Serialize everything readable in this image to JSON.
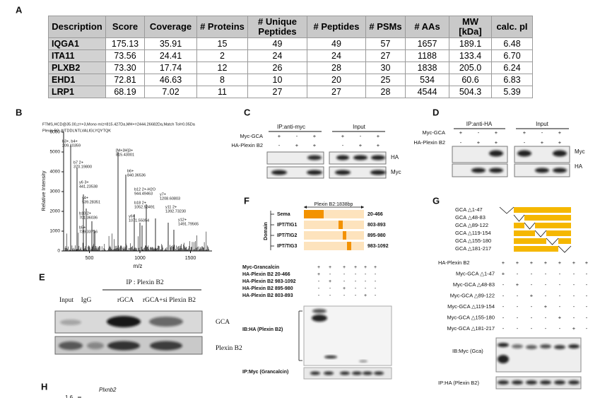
{
  "A": {
    "label": "A",
    "header": [
      "Description",
      "Score",
      "Coverage",
      "# Proteins",
      "# Unique Peptides",
      "# Peptides",
      "# PSMs",
      "# AAs",
      "MW [kDa]",
      "calc. pI"
    ],
    "rows": [
      [
        "IQGA1",
        "175.13",
        "35.91",
        "15",
        "49",
        "49",
        "57",
        "1657",
        "189.1",
        "6.48"
      ],
      [
        "ITA11",
        "73.56",
        "24.41",
        "2",
        "24",
        "24",
        "27",
        "1188",
        "133.4",
        "6.70"
      ],
      [
        "PLXB2",
        "73.30",
        "17.74",
        "12",
        "26",
        "28",
        "30",
        "1838",
        "205.0",
        "6.24"
      ],
      [
        "EHD1",
        "72.81",
        "46.63",
        "8",
        "10",
        "20",
        "25",
        "534",
        "60.6",
        "6.83"
      ],
      [
        "LRP1",
        "68.19",
        "7.02",
        "11",
        "27",
        "27",
        "28",
        "4544",
        "504.3",
        "5.39"
      ]
    ]
  },
  "B": {
    "label": "B",
    "header": [
      "FTMS,HCD@35.00,z=+3,Mono m/z=815.427Da,MH+=2444.26682Da,Match Tol=0.05Da",
      "Plexin B2: AITDDLNTLVALIGLYQYTQK"
    ],
    "y_label": "Relative Intensity",
    "x_label": "m/z",
    "yticks": [
      0,
      1000,
      2000,
      3000,
      4000,
      5000,
      6000
    ],
    "xticks": [
      500,
      1000,
      1500
    ],
    "peaks": [
      [
        "b3+, b4+",
        "209.10359"
      ],
      [
        "b7 2+",
        "370.19800"
      ],
      [
        "y6 3+",
        "441.23538"
      ],
      [
        "y4+",
        "539.28351"
      ],
      [
        "b10 2+",
        "701.36036"
      ],
      [
        "b5+",
        "739.33716"
      ],
      [
        "[M+3H]3+",
        "815.43001"
      ],
      [
        "b6+",
        "840.36536"
      ],
      [
        "b12 2+-H2O",
        "944.49463"
      ],
      [
        "b18 2+",
        "1052.53491"
      ],
      [
        "y6+",
        "1071.55054"
      ],
      [
        "y7+",
        "1208.60803"
      ],
      [
        "y11 2+",
        "1392.73230"
      ],
      [
        "y12+",
        "1491.79565"
      ]
    ]
  },
  "C": {
    "label": "C",
    "ip": "IP:anti-myc",
    "input": "Input",
    "rows": [
      {
        "name": "Myc-GCA",
        "signs": [
          "+",
          "-",
          "+",
          "+",
          "-",
          "+"
        ]
      },
      {
        "name": "HA-Plexin B2",
        "signs": [
          "-",
          "+",
          "+",
          "-",
          "+",
          "+"
        ]
      }
    ],
    "blots": [
      "HA",
      "Myc"
    ]
  },
  "D": {
    "label": "D",
    "ip": "IP:anti-HA",
    "input": "Input",
    "rows": [
      {
        "name": "Myc-GCA",
        "signs": [
          "+",
          "-",
          "+",
          "+",
          "-",
          "+"
        ]
      },
      {
        "name": "HA-Plexin B2",
        "signs": [
          "-",
          "+",
          "+",
          "-",
          "+",
          "+"
        ]
      }
    ],
    "blots": [
      "Myc",
      "HA"
    ]
  },
  "E": {
    "label": "E",
    "ip": "IP : Plexin B2",
    "lanes": [
      "Input",
      "IgG",
      "rGCA",
      "rGCA+si Plexin B2"
    ],
    "blots": [
      "GCA",
      "Plexin B2"
    ]
  },
  "F": {
    "label": "F",
    "construct": "Plexin B2:1838bp",
    "domain_label": "Domain",
    "domains": [
      {
        "name": "Sema",
        "range": "20-466"
      },
      {
        "name": "IPT/TIG1",
        "range": "803-893"
      },
      {
        "name": "IPT/TIG2",
        "range": "895-980"
      },
      {
        "name": "IPT/TIG3",
        "range": "983-1092"
      }
    ],
    "rows": [
      {
        "name": "Myc-Grancalcin",
        "signs": [
          "+",
          "+",
          "+",
          "+",
          "+",
          "+"
        ]
      },
      {
        "name": "HA-Plexin B2 20-466",
        "signs": [
          "+",
          "-",
          "-",
          "-",
          "-",
          "-"
        ]
      },
      {
        "name": "HA-Plexin B2 983-1092",
        "signs": [
          "-",
          "+",
          "-",
          "-",
          "-",
          "-"
        ]
      },
      {
        "name": "HA-Plexin B2 895-980",
        "signs": [
          "-",
          "-",
          "+",
          "-",
          "-",
          "-"
        ]
      },
      {
        "name": "HA-Plexin B2 803-893",
        "signs": [
          "-",
          "-",
          "-",
          "-",
          "+",
          "-"
        ]
      }
    ],
    "blots": [
      "IB:HA (Plexin B2)",
      "IP:Myc (Grancalcin)"
    ]
  },
  "G": {
    "label": "G",
    "constructs": [
      "GCA △1-47",
      "GCA △48-83",
      "GCA △89-122",
      "GCA △119-154",
      "GCA △155-180",
      "GCA △181-217"
    ],
    "rows": [
      {
        "name": "HA-Plexin B2",
        "signs": [
          "+",
          "+",
          "+",
          "+",
          "+",
          "+",
          "+"
        ]
      },
      {
        "name": "Myc-GCA △1-47",
        "signs": [
          "+",
          "-",
          "-",
          "-",
          "-",
          "-",
          "-"
        ]
      },
      {
        "name": "Myc-GCA △48-83",
        "signs": [
          "-",
          "+",
          "-",
          "-",
          "-",
          "-",
          "-"
        ]
      },
      {
        "name": "Myc-GCA △89-122",
        "signs": [
          "-",
          "-",
          "+",
          "-",
          "-",
          "-",
          "-"
        ]
      },
      {
        "name": "Myc-GCA △119-154",
        "signs": [
          "-",
          "-",
          "-",
          "+",
          "-",
          "-",
          "-"
        ]
      },
      {
        "name": "Myc-GCA △155-180",
        "signs": [
          "-",
          "-",
          "-",
          "-",
          "+",
          "-",
          "-"
        ]
      },
      {
        "name": "Myc-GCA △181-217",
        "signs": [
          "-",
          "-",
          "-",
          "-",
          "-",
          "+",
          "-"
        ]
      }
    ],
    "blots": [
      "IB:Myc (Gca)",
      "IP:HA (Plexin B2)"
    ]
  },
  "H": {
    "label": "H",
    "gene": "Plxnb2",
    "tick": "1.6"
  }
}
